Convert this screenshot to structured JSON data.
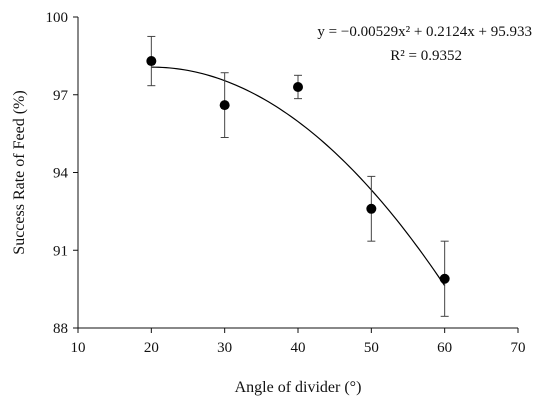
{
  "chart_data": {
    "type": "scatter",
    "title": "",
    "xlabel": "Angle of divider (°)",
    "ylabel": "Success Rate of Feed (%)",
    "xlim": [
      10,
      70
    ],
    "ylim": [
      88,
      100
    ],
    "xticks": [
      "10",
      "20",
      "30",
      "40",
      "50",
      "60",
      "70"
    ],
    "yticks": [
      "88",
      "91",
      "94",
      "97",
      "100"
    ],
    "grid": false,
    "legend": "none",
    "series": [
      {
        "x": [
          20,
          30,
          40,
          50,
          60
        ],
        "y": [
          98.3,
          96.6,
          97.3,
          92.6,
          89.9
        ],
        "error": [
          0.95,
          1.25,
          0.45,
          1.25,
          1.45
        ],
        "color": "#000000"
      }
    ],
    "fit": {
      "type": "polynomial",
      "coefficients": [
        -0.00529,
        0.2124,
        95.933
      ],
      "x_range": [
        20,
        60
      ],
      "equation": "y = −0.00529x² + 0.2124x + 95.933",
      "r_squared": "R² = 0.9352"
    }
  }
}
